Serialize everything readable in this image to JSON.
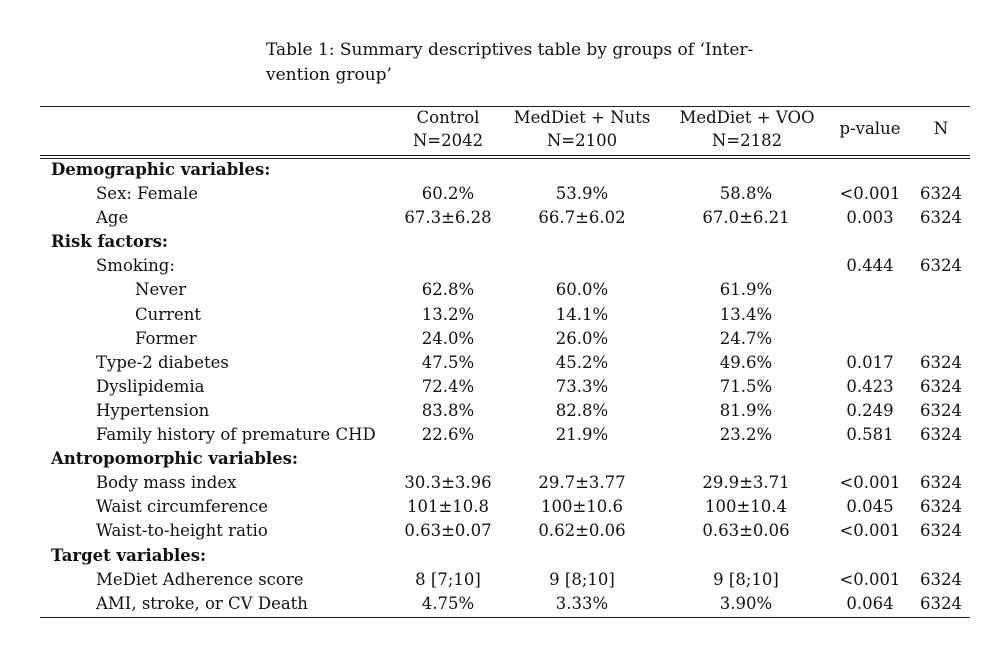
{
  "caption": {
    "line1": "Table 1: Summary descriptives table by groups of ‘Inter-",
    "line2": "vention group’"
  },
  "header": {
    "control": {
      "name": "Control",
      "n": "N=2042"
    },
    "nuts": {
      "name": "MedDiet + Nuts",
      "n": "N=2100"
    },
    "voo": {
      "name": "MedDiet + VOO",
      "n": "N=2182"
    },
    "pvalue": "p-value",
    "N": "N"
  },
  "rows": [
    {
      "kind": "section",
      "label": "Demographic variables:"
    },
    {
      "kind": "lvl1",
      "label": "Sex: Female",
      "control": "60.2%",
      "nuts": "53.9%",
      "voo": "58.8%",
      "p": "<0.001",
      "n": "6324"
    },
    {
      "kind": "lvl1",
      "label": "Age",
      "control": "67.3±6.28",
      "nuts": "66.7±6.02",
      "voo": "67.0±6.21",
      "p": "0.003",
      "n": "6324"
    },
    {
      "kind": "section",
      "label": "Risk factors:"
    },
    {
      "kind": "lvl1",
      "label": "Smoking:",
      "control": "",
      "nuts": "",
      "voo": "",
      "p": "0.444",
      "n": "6324"
    },
    {
      "kind": "lvl2",
      "label": "Never",
      "control": "62.8%",
      "nuts": "60.0%",
      "voo": "61.9%",
      "p": "",
      "n": ""
    },
    {
      "kind": "lvl2",
      "label": "Current",
      "control": "13.2%",
      "nuts": "14.1%",
      "voo": "13.4%",
      "p": "",
      "n": ""
    },
    {
      "kind": "lvl2",
      "label": "Former",
      "control": "24.0%",
      "nuts": "26.0%",
      "voo": "24.7%",
      "p": "",
      "n": ""
    },
    {
      "kind": "lvl1",
      "label": "Type-2 diabetes",
      "control": "47.5%",
      "nuts": "45.2%",
      "voo": "49.6%",
      "p": "0.017",
      "n": "6324"
    },
    {
      "kind": "lvl1",
      "label": "Dyslipidemia",
      "control": "72.4%",
      "nuts": "73.3%",
      "voo": "71.5%",
      "p": "0.423",
      "n": "6324"
    },
    {
      "kind": "lvl1",
      "label": "Hypertension",
      "control": "83.8%",
      "nuts": "82.8%",
      "voo": "81.9%",
      "p": "0.249",
      "n": "6324"
    },
    {
      "kind": "lvl1",
      "label": "Family history of premature CHD",
      "control": "22.6%",
      "nuts": "21.9%",
      "voo": "23.2%",
      "p": "0.581",
      "n": "6324"
    },
    {
      "kind": "section",
      "label": "Antropomorphic variables:"
    },
    {
      "kind": "lvl1",
      "label": "Body mass index",
      "control": "30.3±3.96",
      "nuts": "29.7±3.77",
      "voo": "29.9±3.71",
      "p": "<0.001",
      "n": "6324"
    },
    {
      "kind": "lvl1",
      "label": "Waist circumference",
      "control": "101±10.8",
      "nuts": "100±10.6",
      "voo": "100±10.4",
      "p": "0.045",
      "n": "6324"
    },
    {
      "kind": "lvl1",
      "label": "Waist-to-height ratio",
      "control": "0.63±0.07",
      "nuts": "0.62±0.06",
      "voo": "0.63±0.06",
      "p": "<0.001",
      "n": "6324"
    },
    {
      "kind": "section",
      "label": "Target variables:"
    },
    {
      "kind": "lvl1",
      "label": "MeDiet Adherence score",
      "control": "8 [7;10]",
      "nuts": "9 [8;10]",
      "voo": "9 [8;10]",
      "p": "<0.001",
      "n": "6324"
    },
    {
      "kind": "lvl1",
      "label": "AMI, stroke, or CV Death",
      "control": "4.75%",
      "nuts": "3.33%",
      "voo": "3.90%",
      "p": "0.064",
      "n": "6324"
    }
  ]
}
